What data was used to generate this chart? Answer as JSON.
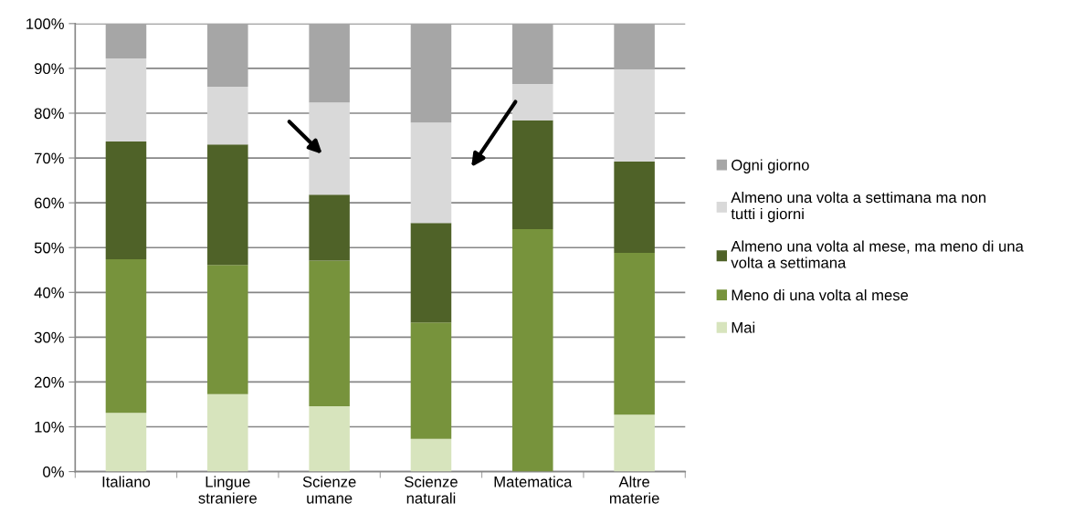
{
  "chart_data": {
    "type": "bar",
    "stacked": true,
    "categories": [
      "Italiano",
      "Lingue straniere",
      "Scienze umane",
      "Scienze naturali",
      "Matematica",
      "Altre materie"
    ],
    "series": [
      {
        "name": "Mai",
        "color": "#d7e4bd",
        "values": [
          13.1,
          17.3,
          14.6,
          7.3,
          0,
          12.7
        ]
      },
      {
        "name": "Meno di una volta al mese",
        "color": "#77933c",
        "values": [
          34.3,
          28.8,
          32.5,
          26.0,
          54.1,
          36.1
        ]
      },
      {
        "name": "Almeno una volta al mese, ma meno di una volta a settimana",
        "color": "#4f6228",
        "values": [
          26.3,
          26.9,
          14.7,
          22.2,
          24.3,
          20.4
        ]
      },
      {
        "name": "Almeno una volta a settimana ma non tutti i giorni",
        "color": "#d9d9d9",
        "values": [
          18.5,
          12.9,
          20.6,
          22.4,
          8.1,
          20.6
        ]
      },
      {
        "name": "Ogni giorno",
        "color": "#a6a6a6",
        "values": [
          7.8,
          14.1,
          17.6,
          22.1,
          13.5,
          10.2
        ]
      }
    ],
    "ylim": [
      0,
      100
    ],
    "yticks": [
      {
        "value": 0,
        "label": "0%"
      },
      {
        "value": 10,
        "label": "10%"
      },
      {
        "value": 20,
        "label": "20%"
      },
      {
        "value": 30,
        "label": "30%"
      },
      {
        "value": 40,
        "label": "40%"
      },
      {
        "value": 50,
        "label": "50%"
      },
      {
        "value": 60,
        "label": "60%"
      },
      {
        "value": 70,
        "label": "70%"
      },
      {
        "value": 80,
        "label": "80%"
      },
      {
        "value": 90,
        "label": "90%"
      },
      {
        "value": 100,
        "label": "100%"
      }
    ],
    "grid": "y",
    "legend": "right"
  }
}
